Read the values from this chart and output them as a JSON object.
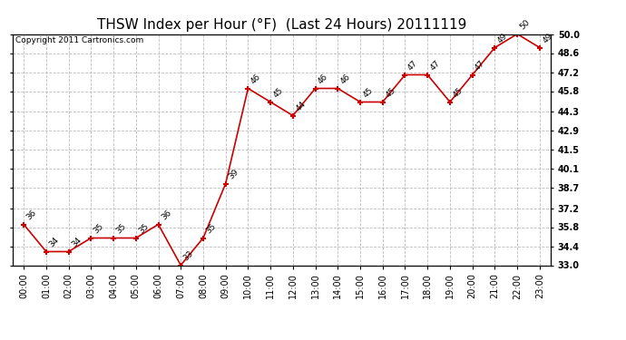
{
  "title": "THSW Index per Hour (°F)  (Last 24 Hours) 20111119",
  "copyright": "Copyright 2011 Cartronics.com",
  "hours": [
    "00:00",
    "01:00",
    "02:00",
    "03:00",
    "04:00",
    "05:00",
    "06:00",
    "07:00",
    "08:00",
    "09:00",
    "10:00",
    "11:00",
    "12:00",
    "13:00",
    "14:00",
    "15:00",
    "16:00",
    "17:00",
    "18:00",
    "19:00",
    "20:00",
    "21:00",
    "22:00",
    "23:00"
  ],
  "values": [
    36,
    34,
    34,
    35,
    35,
    35,
    36,
    33,
    35,
    39,
    46,
    45,
    44,
    46,
    46,
    45,
    45,
    47,
    47,
    45,
    47,
    49,
    50,
    49
  ],
  "line_color": "#cc0000",
  "marker_color": "#cc0000",
  "bg_color": "#ffffff",
  "grid_color": "#bbbbbb",
  "ylim_min": 33.0,
  "ylim_max": 50.0,
  "yticks": [
    33.0,
    34.4,
    35.8,
    37.2,
    38.7,
    40.1,
    41.5,
    42.9,
    44.3,
    45.8,
    47.2,
    48.6,
    50.0
  ],
  "title_fontsize": 11,
  "label_fontsize": 7,
  "annotation_fontsize": 6.5,
  "copyright_fontsize": 6.5
}
